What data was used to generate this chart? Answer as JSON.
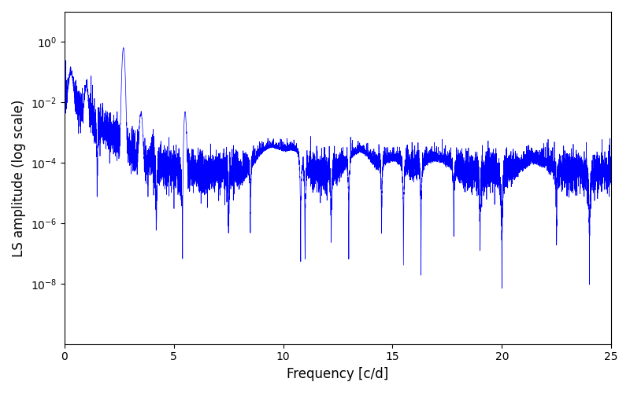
{
  "title": "",
  "xlabel": "Frequency [c/d]",
  "ylabel": "LS amplitude (log scale)",
  "line_color": "blue",
  "xlim": [
    0,
    25
  ],
  "figsize": [
    8.0,
    5.0
  ],
  "dpi": 100,
  "yscale": "log",
  "yticks": [
    1e-08,
    1e-06,
    0.0001,
    0.01,
    1.0
  ],
  "xticks": [
    0,
    5,
    10,
    15,
    20,
    25
  ],
  "seed": 12345,
  "n_points": 8000,
  "freq_max": 25.0
}
